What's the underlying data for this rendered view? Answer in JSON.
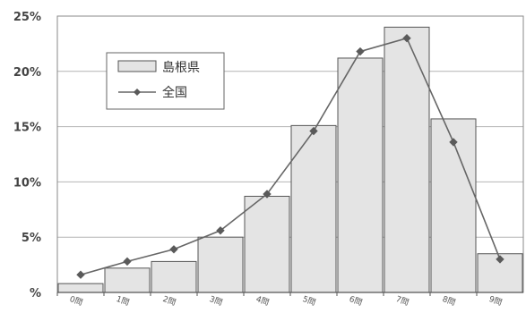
{
  "chart_data": {
    "type": "bar",
    "categories": [
      "0問",
      "1問",
      "2問",
      "3問",
      "4問",
      "5問",
      "6問",
      "7問",
      "8問",
      "9問"
    ],
    "y_ticks": [
      "25%",
      "20%",
      "15%",
      "10%",
      "5%",
      "%"
    ],
    "ylim": [
      0,
      25
    ],
    "grid": true,
    "legend_position": "upper-left",
    "series": [
      {
        "name": "島根県",
        "kind": "bar",
        "values": [
          0.8,
          2.2,
          2.8,
          5.0,
          8.7,
          15.1,
          21.2,
          24.0,
          15.7,
          3.5
        ]
      },
      {
        "name": "全国",
        "kind": "line",
        "values": [
          1.6,
          2.8,
          3.9,
          5.6,
          8.9,
          14.6,
          21.8,
          23.0,
          13.6,
          3.0
        ]
      }
    ],
    "colors": {
      "bar_fill": "#e4e4e4",
      "bar_stroke": "#555555",
      "line": "#666666",
      "grid": "#b4b4b4"
    }
  }
}
